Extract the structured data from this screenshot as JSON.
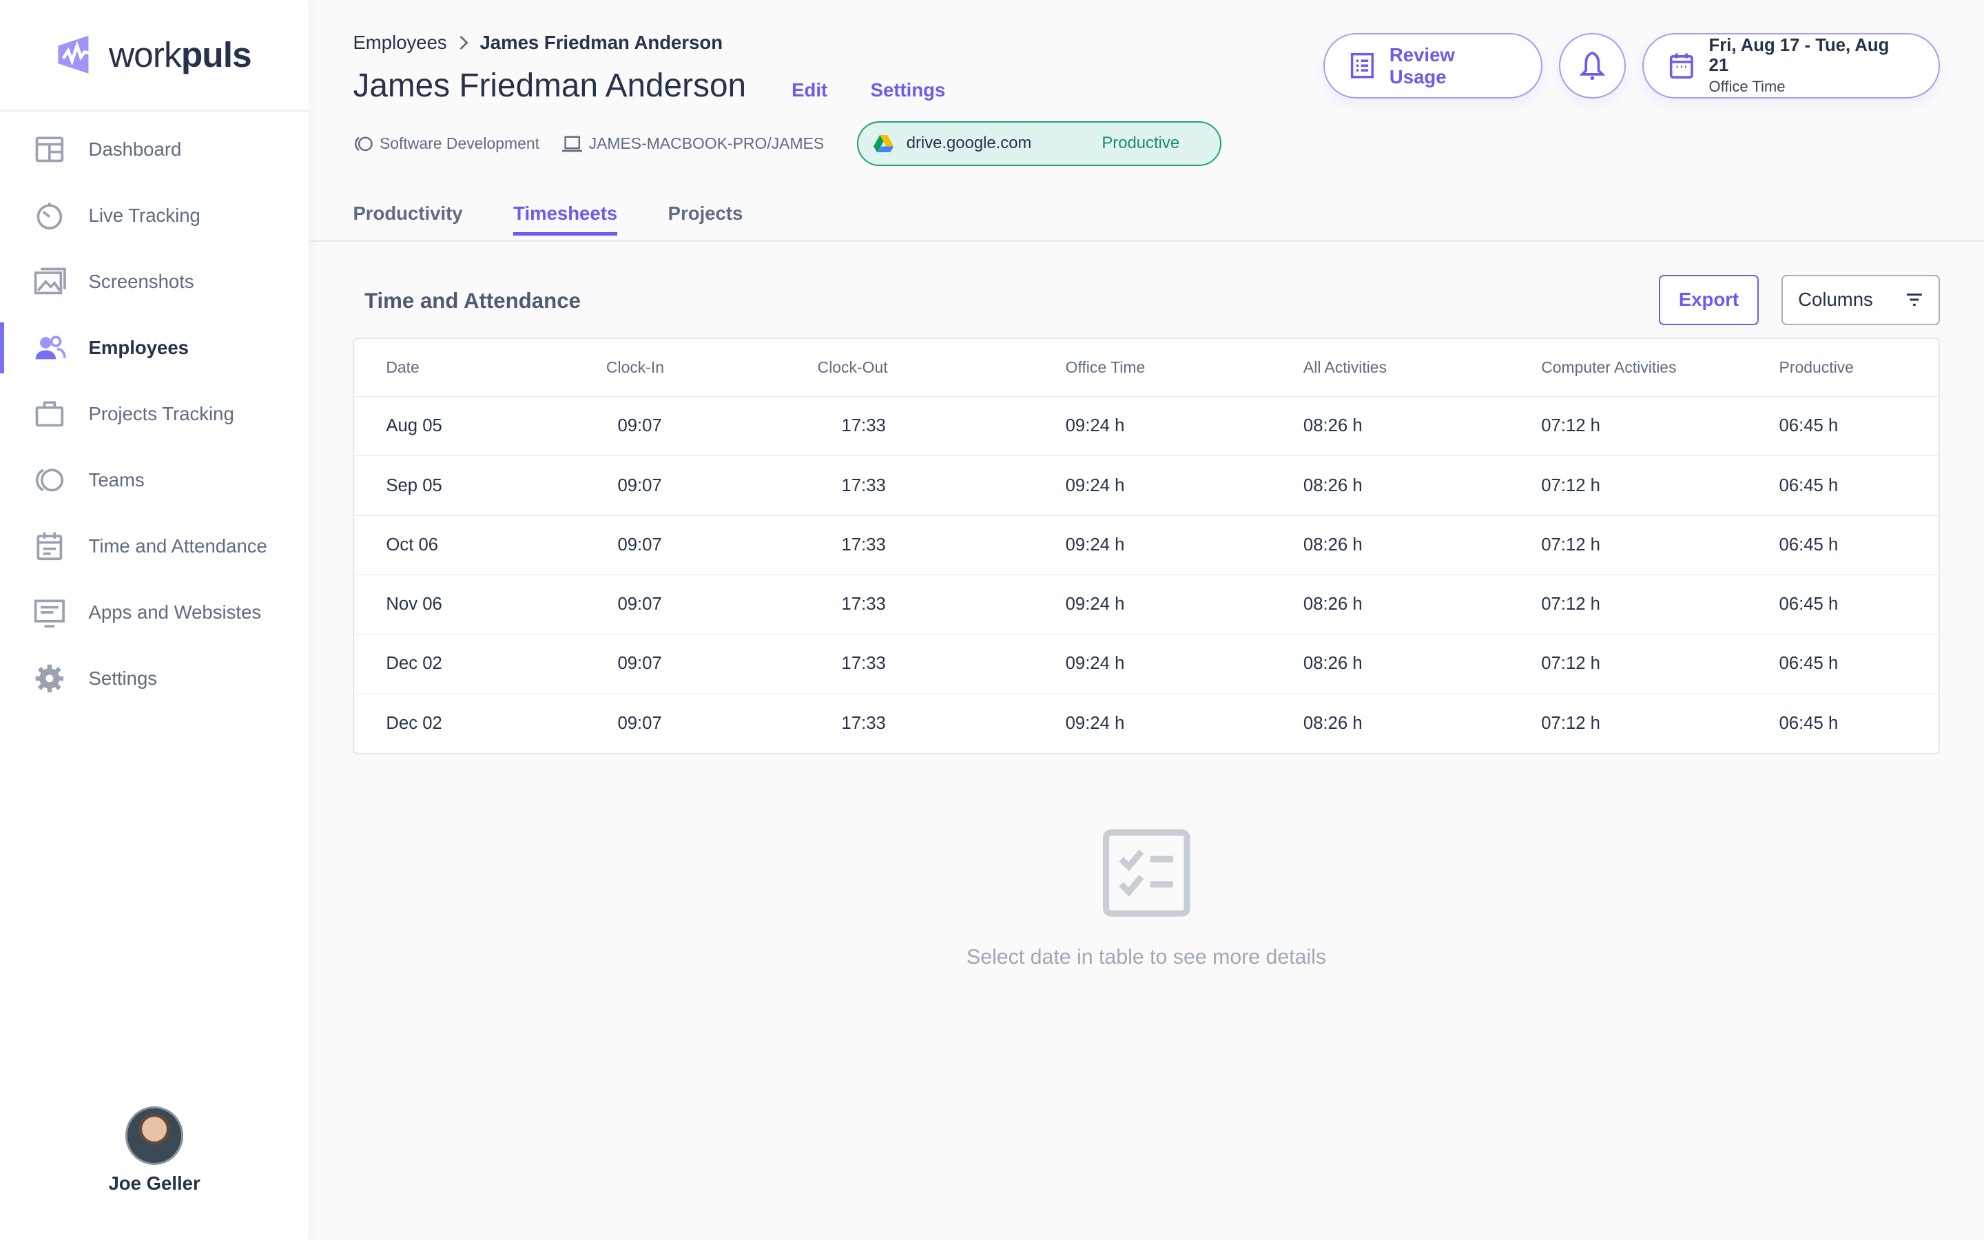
{
  "brand": {
    "name_light": "work",
    "name_bold": "puls",
    "accent": "#6a5cf0"
  },
  "sidebar": {
    "items": [
      {
        "label": "Dashboard",
        "icon": "dashboard-icon"
      },
      {
        "label": "Live Tracking",
        "icon": "timer-icon"
      },
      {
        "label": "Screenshots",
        "icon": "images-icon"
      },
      {
        "label": "Employees",
        "icon": "users-icon",
        "active": true
      },
      {
        "label": "Projects Tracking",
        "icon": "briefcase-icon"
      },
      {
        "label": "Teams",
        "icon": "teams-icon"
      },
      {
        "label": "Time and Attendance",
        "icon": "calendar-icon"
      },
      {
        "label": "Apps and Websistes",
        "icon": "monitor-icon"
      },
      {
        "label": "Settings",
        "icon": "gear-icon"
      }
    ],
    "user": {
      "name": "Joe Geller"
    }
  },
  "header": {
    "breadcrumb": [
      "Employees",
      "James Friedman Anderson"
    ],
    "title": "James Friedman Anderson",
    "edit": "Edit",
    "settings": "Settings",
    "team": "Software Development",
    "device": "JAMES-MACBOOK-PRO/JAMES",
    "current_app": {
      "domain": "drive.google.com",
      "status": "Productive"
    },
    "review_usage": "Review Usage",
    "date_range": "Fri, Aug 17 - Tue, Aug 21",
    "date_sub": "Office Time"
  },
  "tabs": [
    "Productivity",
    "Timesheets",
    "Projects"
  ],
  "active_tab": "Timesheets",
  "section": {
    "title": "Time and Attendance",
    "export": "Export",
    "columns": "Columns"
  },
  "table": {
    "headers": [
      "Date",
      "Clock-In",
      "Clock-Out",
      "Office Time",
      "All Activities",
      "Computer Activities",
      "Productive"
    ],
    "rows": [
      [
        "Aug 05",
        "09:07",
        "17:33",
        "09:24 h",
        "08:26 h",
        "07:12 h",
        "06:45 h"
      ],
      [
        "Sep 05",
        "09:07",
        "17:33",
        "09:24 h",
        "08:26 h",
        "07:12 h",
        "06:45 h"
      ],
      [
        "Oct 06",
        "09:07",
        "17:33",
        "09:24 h",
        "08:26 h",
        "07:12 h",
        "06:45 h"
      ],
      [
        "Nov 06",
        "09:07",
        "17:33",
        "09:24 h",
        "08:26 h",
        "07:12 h",
        "06:45 h"
      ],
      [
        "Dec 02",
        "09:07",
        "17:33",
        "09:24 h",
        "08:26 h",
        "07:12 h",
        "06:45 h"
      ],
      [
        "Dec 02",
        "09:07",
        "17:33",
        "09:24 h",
        "08:26 h",
        "07:12 h",
        "06:45 h"
      ]
    ]
  },
  "empty_state": "Select date in table to see more details"
}
